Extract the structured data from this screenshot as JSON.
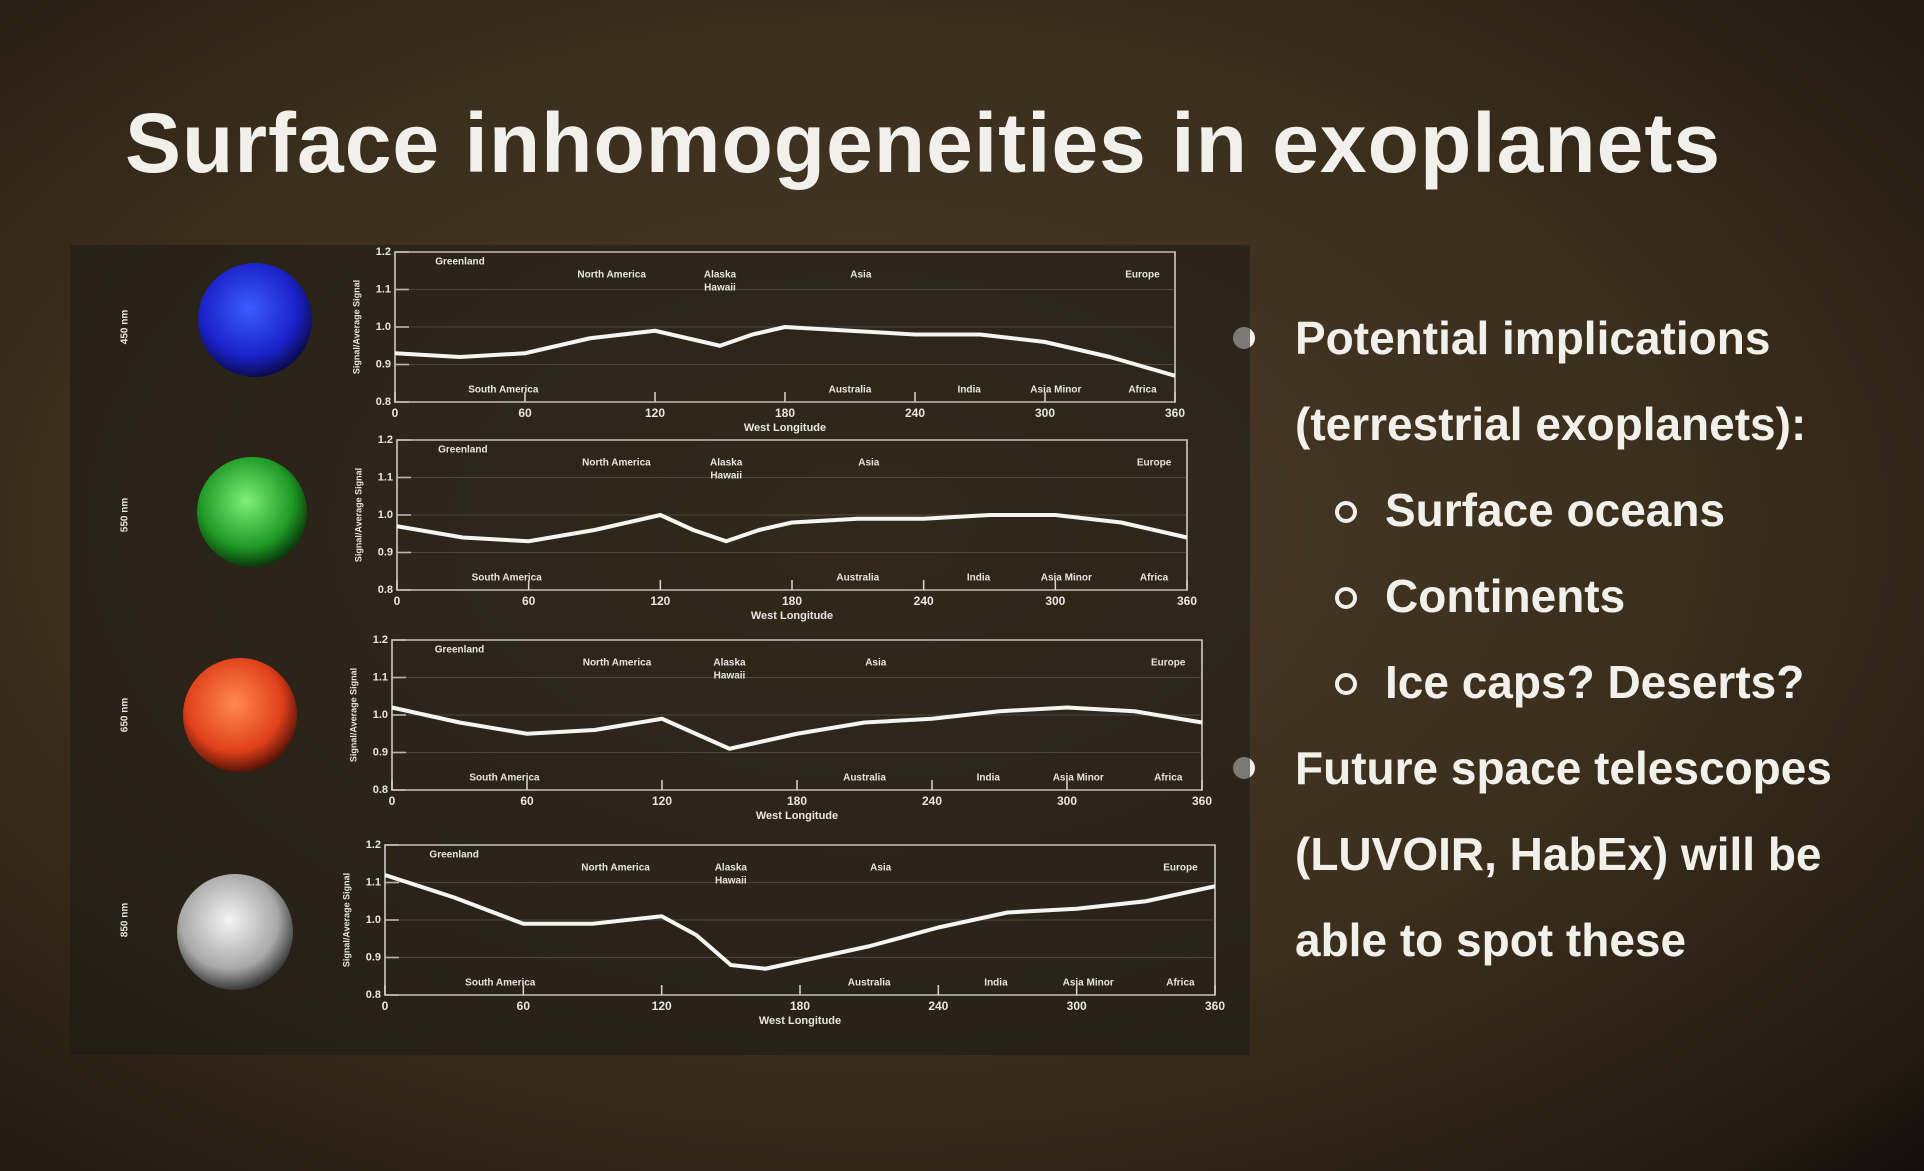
{
  "title": "Surface inhomogeneities in exoplanets",
  "bullets": [
    {
      "lines": [
        "Potential implications",
        "(terrestrial exoplanets):"
      ],
      "sub": [
        "Surface oceans",
        "Continents",
        "Ice caps? Deserts?"
      ]
    },
    {
      "lines": [
        "Future space telescopes",
        "(LUVOIR, HabEx) will be",
        "able to spot these"
      ],
      "sub": []
    }
  ],
  "chart_data": [
    {
      "type": "line",
      "wavelength_label": "450 nm",
      "ylabel": "Signal/Average Signal",
      "xlabel": "West Longitude",
      "x": [
        0,
        30,
        60,
        90,
        120,
        135,
        150,
        165,
        180,
        210,
        240,
        270,
        300,
        330,
        360
      ],
      "series": [
        {
          "color": "#f4f4f0",
          "values": [
            0.93,
            0.92,
            0.93,
            0.97,
            0.99,
            0.97,
            0.95,
            0.98,
            1.0,
            0.99,
            0.98,
            0.98,
            0.96,
            0.92,
            0.87
          ]
        }
      ],
      "xlim": [
        0,
        360
      ],
      "ylim": [
        0.8,
        1.2
      ],
      "xticks": [
        0,
        60,
        120,
        180,
        240,
        300,
        360
      ],
      "yticks": [
        0.8,
        0.9,
        {
          "value": 1,
          "label": "1.0"
        },
        1.1,
        1.2
      ],
      "annotations_top": [
        "Greenland",
        "North America",
        "Alaska",
        "Hawaii",
        "Asia",
        "Europe"
      ],
      "annotations_bottom": [
        "South America",
        "Australia",
        "India",
        "Asia Minor",
        "Africa"
      ]
    },
    {
      "type": "line",
      "wavelength_label": "550 nm",
      "ylabel": "Signal/Average Signal",
      "xlabel": "West Longitude",
      "x": [
        0,
        30,
        60,
        90,
        120,
        135,
        150,
        165,
        180,
        210,
        240,
        270,
        300,
        330,
        360
      ],
      "series": [
        {
          "color": "#f4f4f0",
          "values": [
            0.97,
            0.94,
            0.93,
            0.96,
            1.0,
            0.96,
            0.93,
            0.96,
            0.98,
            0.99,
            0.99,
            1.0,
            1.0,
            0.98,
            0.94
          ]
        }
      ],
      "xlim": [
        0,
        360
      ],
      "ylim": [
        0.8,
        1.2
      ],
      "xticks": [
        0,
        60,
        120,
        180,
        240,
        300,
        360
      ],
      "yticks": [
        0.8,
        0.9,
        {
          "value": 1,
          "label": "1.0"
        },
        1.1,
        1.2
      ],
      "annotations_top": [
        "Greenland",
        "North America",
        "Alaska",
        "Hawaii",
        "Asia",
        "Europe"
      ],
      "annotations_bottom": [
        "South America",
        "Australia",
        "India",
        "Asia Minor",
        "Africa"
      ]
    },
    {
      "type": "line",
      "wavelength_label": "650 nm",
      "ylabel": "Signal/Average Signal",
      "xlabel": "West Longitude",
      "x": [
        0,
        30,
        60,
        90,
        120,
        135,
        150,
        165,
        180,
        210,
        240,
        270,
        300,
        330,
        360
      ],
      "series": [
        {
          "color": "#f4f4f0",
          "values": [
            1.02,
            0.98,
            0.95,
            0.96,
            0.99,
            0.95,
            0.91,
            0.93,
            0.95,
            0.98,
            0.99,
            1.01,
            1.02,
            1.01,
            0.98
          ]
        }
      ],
      "xlim": [
        0,
        360
      ],
      "ylim": [
        0.8,
        1.2
      ],
      "xticks": [
        0,
        60,
        120,
        180,
        240,
        300,
        360
      ],
      "yticks": [
        0.8,
        0.9,
        {
          "value": 1,
          "label": "1.0"
        },
        1.1,
        1.2
      ],
      "annotations_top": [
        "Greenland",
        "North America",
        "Alaska",
        "Hawaii",
        "Asia",
        "Europe"
      ],
      "annotations_bottom": [
        "South America",
        "Australia",
        "India",
        "Asia Minor",
        "Africa"
      ]
    },
    {
      "type": "line",
      "wavelength_label": "850 nm",
      "ylabel": "Signal/Average Signal",
      "xlabel": "West Longitude",
      "x": [
        0,
        30,
        60,
        90,
        120,
        135,
        150,
        165,
        180,
        210,
        240,
        270,
        300,
        330,
        360
      ],
      "series": [
        {
          "color": "#f4f4f0",
          "values": [
            1.12,
            1.06,
            0.99,
            0.99,
            1.01,
            0.96,
            0.88,
            0.87,
            0.89,
            0.93,
            0.98,
            1.02,
            1.03,
            1.05,
            1.09
          ]
        }
      ],
      "xlim": [
        0,
        360
      ],
      "ylim": [
        0.8,
        1.2
      ],
      "xticks": [
        0,
        60,
        120,
        180,
        240,
        300,
        360
      ],
      "yticks": [
        0.8,
        0.9,
        {
          "value": 1,
          "label": "1.0"
        },
        1.1,
        1.2
      ],
      "annotations_top": [
        "Greenland",
        "North America",
        "Alaska",
        "Hawaii",
        "Asia",
        "Europe"
      ],
      "annotations_bottom": [
        "South America",
        "Australia",
        "India",
        "Asia Minor",
        "Africa"
      ]
    }
  ]
}
